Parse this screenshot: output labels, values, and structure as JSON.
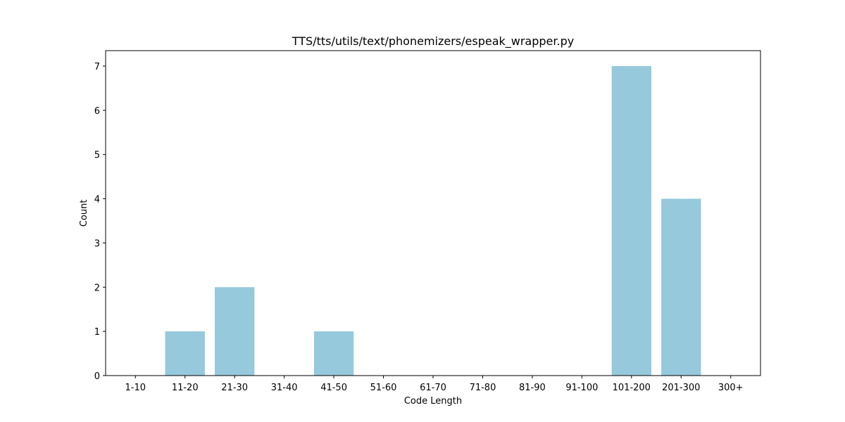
{
  "chart_data": {
    "type": "bar",
    "title": "TTS/tts/utils/text/phonemizers/espeak_wrapper.py",
    "xlabel": "Code Length",
    "ylabel": "Count",
    "categories": [
      "1-10",
      "11-20",
      "21-30",
      "31-40",
      "41-50",
      "51-60",
      "61-70",
      "71-80",
      "81-90",
      "91-100",
      "101-200",
      "201-300",
      "300+"
    ],
    "values": [
      0,
      1,
      2,
      0,
      1,
      0,
      0,
      0,
      0,
      0,
      7,
      4,
      0
    ],
    "ylim": [
      0,
      7.35
    ],
    "yticks": [
      0,
      1,
      2,
      3,
      4,
      5,
      6,
      7
    ],
    "grid": false,
    "bar_color": "#96c9dc"
  }
}
